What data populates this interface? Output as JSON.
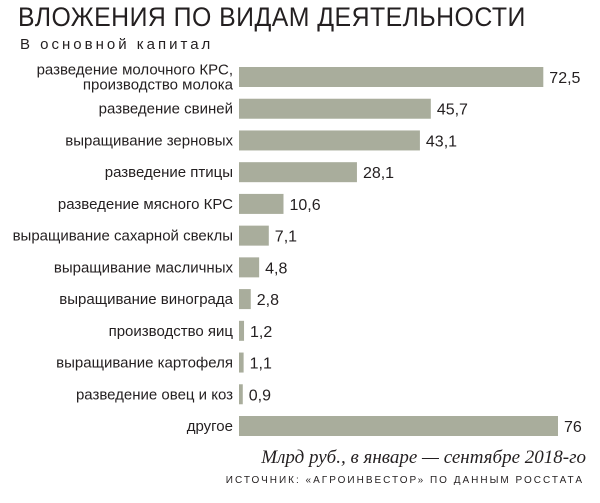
{
  "title": "ВЛОЖЕНИЯ ПО ВИДАМ ДЕЯТЕЛЬНОСТИ",
  "subtitle": "В основной капитал",
  "caption": "Млрд руб., в январе — сентябре 2018-го",
  "source": "ИСТОЧНИК: «АГРОИНВЕСТОР» ПО ДАННЫМ РОССТАТА",
  "colors": {
    "bar": "#a9ad9c",
    "text": "#231f20"
  },
  "chart_data": {
    "type": "bar",
    "orientation": "horizontal",
    "categories": [
      [
        "разведение молочного КРС,",
        "производство молока"
      ],
      [
        "разведение свиней"
      ],
      [
        "выращивание зерновых"
      ],
      [
        "разведение птицы"
      ],
      [
        "разведение мясного КРС"
      ],
      [
        "выращивание сахарной свеклы"
      ],
      [
        "выращивание масличных"
      ],
      [
        "выращивание винограда"
      ],
      [
        "производство яиц"
      ],
      [
        "выращивание картофеля"
      ],
      [
        "разведение овец и коз"
      ],
      [
        "другое"
      ]
    ],
    "values": [
      72.5,
      45.7,
      43.1,
      28.1,
      10.6,
      7.1,
      4.8,
      2.8,
      1.2,
      1.1,
      0.9,
      76
    ],
    "value_labels": [
      "72,5",
      "45,7",
      "43,1",
      "28,1",
      "10,6",
      "7,1",
      "4,8",
      "2,8",
      "1,2",
      "1,1",
      "0,9",
      "76"
    ],
    "title": "ВЛОЖЕНИЯ ПО ВИДАМ ДЕЯТЕЛЬНОСТИ",
    "xlabel": "",
    "ylabel": "",
    "xlim": [
      0,
      76
    ],
    "grid": false,
    "legend": "none"
  }
}
